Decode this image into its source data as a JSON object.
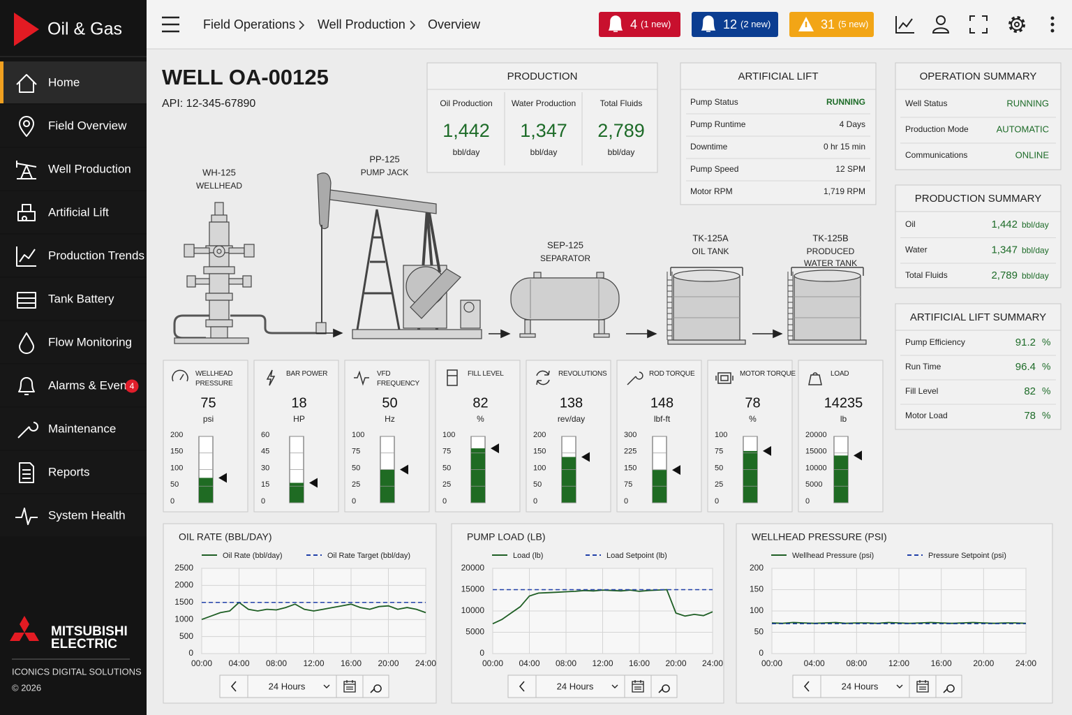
{
  "brand": "Oil & Gas",
  "nav": {
    "active": 0,
    "items": [
      {
        "label": "Home"
      },
      {
        "label": "Field Overview"
      },
      {
        "label": "Well Production"
      },
      {
        "label": "Artificial Lift"
      },
      {
        "label": "Production Trends"
      },
      {
        "label": "Tank Battery"
      },
      {
        "label": "Flow Monitoring"
      },
      {
        "label": "Alarms & Events",
        "badge": 4
      },
      {
        "label": "Maintenance"
      },
      {
        "label": "Reports"
      },
      {
        "label": "System Health"
      }
    ]
  },
  "footer": {
    "company": [
      "MITSUBISHI",
      "ELECTRIC"
    ],
    "division": "ICONICS DIGITAL SOLUTIONS",
    "copyright": "© 2026"
  },
  "breadcrumb": [
    "Field Operations",
    "Well Production",
    "Overview"
  ],
  "alarms": [
    {
      "count": 4,
      "label": "(1 new)",
      "color": "#c8102e"
    },
    {
      "count": 12,
      "label": "(2 new)",
      "color": "#0b3d91"
    },
    {
      "count": 31,
      "label": "(5 new)",
      "color": "#f2a516"
    }
  ],
  "well": {
    "name": "WELL OA-00125",
    "api": "API: 12-345-67890"
  },
  "production": {
    "title": "PRODUCTION",
    "items": [
      {
        "label": "Oil Production",
        "value": "1,442",
        "unit": "bbl/day"
      },
      {
        "label": "Water Production",
        "value": "1,347",
        "unit": "bbl/day"
      },
      {
        "label": "Total Fluids",
        "value": "2,789",
        "unit": "bbl/day"
      }
    ]
  },
  "artificial_lift": {
    "title": "ARTIFICIAL LIFT",
    "rows": [
      {
        "label": "Pump Status",
        "value": "RUNNING"
      },
      {
        "label": "Pump Runtime",
        "value": "4 Days"
      },
      {
        "label": "Downtime",
        "value": "0 hr 15 min"
      },
      {
        "label": "Pump Speed",
        "value": "12 SPM"
      },
      {
        "label": "Motor RPM",
        "value": "1,719 RPM"
      }
    ]
  },
  "operation_summary": {
    "title": "OPERATION SUMMARY",
    "rows": [
      {
        "label": "Well Status",
        "value": "RUNNING"
      },
      {
        "label": "Production Mode",
        "value": "AUTOMATIC"
      },
      {
        "label": "Communications",
        "value": "ONLINE"
      }
    ]
  },
  "production_summary": {
    "title": "PRODUCTION SUMMARY",
    "rows": [
      {
        "label": "Oil",
        "value": "1,442",
        "unit": "bbl/day"
      },
      {
        "label": "Water",
        "value": "1,347",
        "unit": "bbl/day"
      },
      {
        "label": "Total Fluids",
        "value": "2,789",
        "unit": "bbl/day"
      }
    ]
  },
  "lift_summary": {
    "title": "ARTIFICIAL LIFT SUMMARY",
    "rows": [
      {
        "label": "Pump Efficiency",
        "value": "91.2",
        "unit": "%"
      },
      {
        "label": "Run Time",
        "value": "96.4",
        "unit": "%"
      },
      {
        "label": "Fill Level",
        "value": "82",
        "unit": "%"
      },
      {
        "label": "Motor Load",
        "value": "78",
        "unit": "%"
      }
    ]
  },
  "equipment": [
    {
      "tag": "WH-125",
      "name": [
        "WELLHEAD"
      ]
    },
    {
      "tag": "PP-125",
      "name": [
        "PUMP JACK"
      ]
    },
    {
      "tag": "SEP-125",
      "name": [
        "SEPARATOR"
      ]
    },
    {
      "tag": "TK-125A",
      "name": [
        "OIL TANK"
      ]
    },
    {
      "tag": "TK-125B",
      "name": [
        "PRODUCED",
        "WATER TANK"
      ]
    }
  ],
  "gauges": [
    {
      "title": "WELLHEAD PRESSURE",
      "value": 75,
      "unit": "psi",
      "range": [
        0,
        200
      ],
      "ticks": [
        0,
        50,
        100,
        150,
        200
      ]
    },
    {
      "title": "BAR POWER",
      "value": 18,
      "unit": "HP",
      "range": [
        0,
        60
      ],
      "ticks": [
        0,
        15,
        30,
        45,
        60
      ]
    },
    {
      "title": "VFD FREQUENCY",
      "value": 50,
      "unit": "Hz",
      "range": [
        0,
        100
      ],
      "ticks": [
        0,
        25,
        50,
        75,
        100
      ]
    },
    {
      "title": "FILL LEVEL",
      "value": 82,
      "unit": "%",
      "range": [
        0,
        100
      ],
      "ticks": [
        0,
        25,
        50,
        75,
        100
      ]
    },
    {
      "title": "REVOLUTIONS",
      "value": 138,
      "unit": "rev/day",
      "range": [
        0,
        200
      ],
      "ticks": [
        0,
        50,
        100,
        150,
        200
      ]
    },
    {
      "title": "ROD TORQUE",
      "value": 148,
      "unit": "lbf-ft",
      "range": [
        0,
        300
      ],
      "ticks": [
        0,
        75,
        150,
        225,
        300
      ]
    },
    {
      "title": "MOTOR TORQUE",
      "value": 78,
      "unit": "%",
      "range": [
        0,
        100
      ],
      "ticks": [
        0,
        25,
        50,
        75,
        100
      ]
    },
    {
      "title": "LOAD",
      "value": 14235,
      "unit": "lb",
      "range": [
        0,
        20000
      ],
      "ticks": [
        0,
        5000,
        10000,
        15000,
        20000
      ]
    }
  ],
  "trends": [
    {
      "title": "OIL RATE (BBL/DAY)",
      "range": "24 Hours",
      "x": [
        0,
        1,
        2,
        3,
        4,
        5,
        6,
        7,
        8,
        9,
        10,
        11,
        12,
        13,
        14,
        15,
        16,
        17,
        18,
        19,
        20,
        21,
        22,
        23,
        24
      ],
      "xlim": [
        0,
        24
      ],
      "xticks": [
        {
          "value": 0,
          "label": "00:00"
        },
        {
          "value": 4,
          "label": "04:00"
        },
        {
          "value": 8,
          "label": "08:00"
        },
        {
          "value": 12,
          "label": "12:00"
        },
        {
          "value": 16,
          "label": "16:00"
        },
        {
          "value": 20,
          "label": "20:00"
        },
        {
          "value": 24,
          "label": "24:00"
        }
      ],
      "ylim": [
        0,
        2500
      ],
      "yticks": [
        0,
        500,
        1000,
        1500,
        2000,
        2500
      ],
      "series": [
        {
          "name": "Oil Rate (bbl/day)",
          "color": "#1e5e24",
          "values": [
            1000,
            1100,
            1200,
            1250,
            1500,
            1300,
            1250,
            1300,
            1280,
            1350,
            1450,
            1300,
            1250,
            1300,
            1350,
            1400,
            1450,
            1350,
            1300,
            1380,
            1400,
            1300,
            1350,
            1300,
            1200
          ]
        },
        {
          "name": "Oil Rate Target (bbl/day)",
          "color": "#1f3fa8",
          "dashed": true,
          "values": [
            1500,
            1500,
            1500,
            1500,
            1500,
            1500,
            1500,
            1500,
            1500,
            1500,
            1500,
            1500,
            1500,
            1500,
            1500,
            1500,
            1500,
            1500,
            1500,
            1500,
            1500,
            1500,
            1500,
            1500,
            1500
          ]
        }
      ]
    },
    {
      "title": "PUMP LOAD (LB)",
      "range": "24 Hours",
      "x": [
        0,
        1,
        2,
        3,
        4,
        5,
        6,
        7,
        8,
        9,
        10,
        11,
        12,
        13,
        14,
        15,
        16,
        17,
        18,
        19,
        20,
        21,
        22,
        23,
        24
      ],
      "xlim": [
        0,
        24
      ],
      "xticks": [
        {
          "value": 0,
          "label": "00:00"
        },
        {
          "value": 4,
          "label": "04:00"
        },
        {
          "value": 8,
          "label": "08:00"
        },
        {
          "value": 12,
          "label": "12:00"
        },
        {
          "value": 16,
          "label": "16:00"
        },
        {
          "value": 20,
          "label": "20:00"
        },
        {
          "value": 24,
          "label": "24:00"
        }
      ],
      "ylim": [
        0,
        20000
      ],
      "yticks": [
        0,
        5000,
        10000,
        15000,
        20000
      ],
      "series": [
        {
          "name": "Load (lb)",
          "color": "#1e5e24",
          "values": [
            7000,
            8000,
            9500,
            11000,
            13500,
            14200,
            14300,
            14400,
            14500,
            14600,
            14800,
            14700,
            14900,
            14800,
            14700,
            14900,
            14600,
            14800,
            14900,
            15000,
            9500,
            8800,
            9200,
            8900,
            9800
          ]
        },
        {
          "name": "Load Setpoint (lb)",
          "color": "#1f3fa8",
          "dashed": true,
          "values": [
            15000,
            15000,
            15000,
            15000,
            15000,
            15000,
            15000,
            15000,
            15000,
            15000,
            15000,
            15000,
            15000,
            15000,
            15000,
            15000,
            15000,
            15000,
            15000,
            15000,
            15000,
            15000,
            15000,
            15000,
            15000
          ]
        }
      ]
    },
    {
      "title": "WELLHEAD PRESSURE (PSI)",
      "range": "24 Hours",
      "x": [
        0,
        1,
        2,
        3,
        4,
        5,
        6,
        7,
        8,
        9,
        10,
        11,
        12,
        13,
        14,
        15,
        16,
        17,
        18,
        19,
        20,
        21,
        22,
        23,
        24
      ],
      "xlim": [
        0,
        24
      ],
      "xticks": [
        {
          "value": 0,
          "label": "00:00"
        },
        {
          "value": 4,
          "label": "04:00"
        },
        {
          "value": 8,
          "label": "08:00"
        },
        {
          "value": 12,
          "label": "12:00"
        },
        {
          "value": 16,
          "label": "16:00"
        },
        {
          "value": 20,
          "label": "20:00"
        },
        {
          "value": 24,
          "label": "24:00"
        }
      ],
      "ylim": [
        0,
        200
      ],
      "yticks": [
        0,
        50,
        100,
        150,
        200
      ],
      "series": [
        {
          "name": "Wellhead Pressure (psi)",
          "color": "#1e5e24",
          "values": [
            72,
            71,
            73,
            72,
            71,
            72,
            73,
            71,
            72,
            72,
            71,
            73,
            72,
            71,
            72,
            73,
            72,
            71,
            72,
            73,
            72,
            71,
            72,
            72,
            71
          ]
        },
        {
          "name": "Pressure Setpoint (psi)",
          "color": "#1f3fa8",
          "dashed": true,
          "values": [
            70,
            70,
            70,
            70,
            70,
            70,
            70,
            70,
            70,
            70,
            70,
            70,
            70,
            70,
            70,
            70,
            70,
            70,
            70,
            70,
            70,
            70,
            70,
            70,
            70
          ]
        }
      ]
    }
  ]
}
